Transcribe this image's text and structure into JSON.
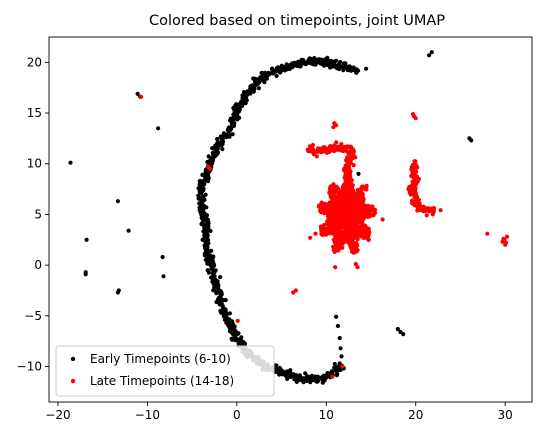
{
  "chart_data": {
    "type": "scatter",
    "title": "Colored based on timepoints, joint UMAP",
    "xlabel": "",
    "ylabel": "",
    "xlim": [
      -21,
      33
    ],
    "ylim": [
      -13.5,
      22.5
    ],
    "xticks": [
      -20,
      -10,
      0,
      10,
      20,
      30
    ],
    "yticks": [
      -10,
      -5,
      0,
      5,
      10,
      15,
      20
    ],
    "grid": false,
    "legend_position": "lower-left",
    "series": [
      {
        "name": "Early Timepoints (6-10)",
        "color": "#000000",
        "points": [
          [
            -18.6,
            10.1
          ],
          [
            -16.8,
            2.5
          ],
          [
            -16.9,
            -0.7
          ],
          [
            -16.9,
            -0.9
          ],
          [
            -13.3,
            6.3
          ],
          [
            -13.2,
            -2.5
          ],
          [
            -13.3,
            -2.7
          ],
          [
            -12.1,
            3.4
          ],
          [
            -11.1,
            16.9
          ],
          [
            -10.8,
            16.6
          ],
          [
            -8.8,
            13.5
          ],
          [
            -8.3,
            0.8
          ],
          [
            -8.2,
            -1.1
          ],
          [
            26.0,
            12.5
          ],
          [
            26.2,
            12.3
          ],
          [
            21.8,
            21.0
          ],
          [
            21.5,
            20.7
          ],
          [
            13.6,
            9.0
          ],
          [
            18.0,
            -6.3
          ],
          [
            18.3,
            -6.6
          ],
          [
            18.6,
            -6.8
          ],
          [
            11.1,
            -5.1
          ],
          [
            11.3,
            -6.0
          ],
          [
            11.5,
            -7.2
          ],
          [
            11.6,
            -8.2
          ],
          [
            11.7,
            -9.0
          ],
          [
            11.5,
            -9.7
          ]
        ],
        "curves": [
          [
            [
              13.6,
              19.3
            ],
            [
              12.0,
              19.5
            ],
            [
              10.5,
              19.8
            ],
            [
              9.0,
              20.1
            ],
            [
              7.5,
              20.0
            ],
            [
              5.5,
              19.5
            ],
            [
              3.8,
              19.0
            ],
            [
              2.5,
              18.3
            ],
            [
              1.2,
              17.0
            ],
            [
              0.3,
              15.5
            ],
            [
              -0.5,
              14.0
            ],
            [
              -1.3,
              12.7
            ],
            [
              -2.2,
              11.5
            ],
            [
              -3.0,
              10.0
            ],
            [
              -3.5,
              8.7
            ],
            [
              -3.9,
              7.5
            ],
            [
              -4.0,
              6.2
            ],
            [
              -3.7,
              5.0
            ],
            [
              -3.4,
              4.0
            ],
            [
              -3.5,
              2.5
            ],
            [
              -3.2,
              1.0
            ],
            [
              -2.7,
              -0.5
            ],
            [
              -2.3,
              -2.0
            ],
            [
              -1.8,
              -3.5
            ],
            [
              -1.3,
              -5.0
            ],
            [
              -0.5,
              -6.3
            ],
            [
              0.2,
              -7.5
            ],
            [
              1.2,
              -8.7
            ],
            [
              2.3,
              -9.5
            ],
            [
              3.5,
              -10.0
            ],
            [
              5.0,
              -10.6
            ],
            [
              6.5,
              -11.0
            ],
            [
              8.0,
              -11.3
            ],
            [
              9.5,
              -11.2
            ],
            [
              10.8,
              -10.6
            ],
            [
              11.8,
              -9.9
            ]
          ]
        ]
      },
      {
        "name": "Late Timepoints (14-18)",
        "color": "#ff0000",
        "points": [
          [
            -10.7,
            16.6
          ],
          [
            -3.2,
            9.7
          ],
          [
            -3.0,
            9.5
          ],
          [
            0.1,
            -5.5
          ],
          [
            10.7,
            -11.0
          ],
          [
            11.8,
            -10.0
          ],
          [
            6.6,
            -2.5
          ],
          [
            6.3,
            -2.7
          ],
          [
            11.0,
            -0.2
          ],
          [
            13.3,
            0.1
          ],
          [
            13.5,
            -0.2
          ],
          [
            13.2,
            1.9
          ],
          [
            10.9,
            14.0
          ],
          [
            11.1,
            13.8
          ],
          [
            10.8,
            13.6
          ],
          [
            19.8,
            14.7
          ],
          [
            20.0,
            14.5
          ],
          [
            19.7,
            14.9
          ],
          [
            28.0,
            3.1
          ],
          [
            29.8,
            2.6
          ],
          [
            30.1,
            2.2
          ],
          [
            29.9,
            2.5
          ],
          [
            30.2,
            2.8
          ],
          [
            29.7,
            2.3
          ],
          [
            30.0,
            2.0
          ],
          [
            16.3,
            4.5
          ],
          [
            9.4,
            3.8
          ],
          [
            8.8,
            3.1
          ],
          [
            8.2,
            2.7
          ],
          [
            14.8,
            3.2
          ]
        ],
        "curves": [
          [
            [
              8.1,
              11.4
            ],
            [
              9.2,
              11.2
            ],
            [
              10.3,
              11.4
            ],
            [
              11.4,
              11.7
            ],
            [
              12.6,
              11.4
            ],
            [
              13.0,
              10.7
            ],
            [
              12.5,
              10.1
            ],
            [
              12.4,
              9.4
            ],
            [
              12.5,
              8.6
            ]
          ],
          [
            [
              19.7,
              10.2
            ],
            [
              19.8,
              8.5
            ],
            [
              19.7,
              7.2
            ],
            [
              19.9,
              6.3
            ],
            [
              20.3,
              5.7
            ],
            [
              21.0,
              5.5
            ],
            [
              21.8,
              5.4
            ],
            [
              22.3,
              5.5
            ]
          ]
        ],
        "cluster": {
          "cx": 12.3,
          "cy": 4.9,
          "rx": 2.6,
          "ry": 3.2,
          "count": 1100
        }
      }
    ]
  }
}
